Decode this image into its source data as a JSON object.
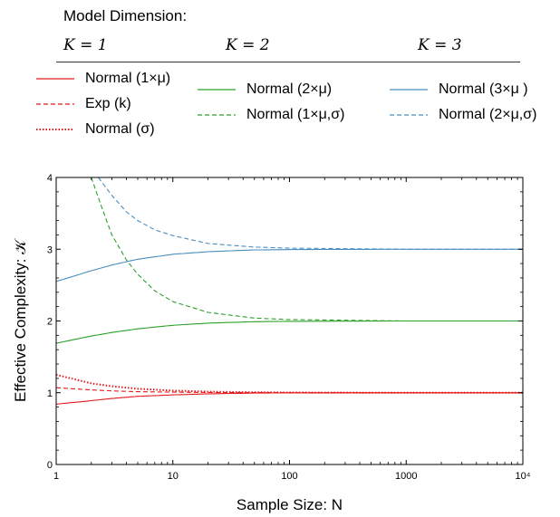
{
  "legend": {
    "title": "Model Dimension:",
    "headers": [
      "K = 1",
      "K = 2",
      "K = 3"
    ],
    "groups": [
      [
        {
          "label": "Normal (1×μ)",
          "color": "#e41a1c",
          "dash": "solid"
        },
        {
          "label": "Exp (k)",
          "color": "#e41a1c",
          "dash": "dashed"
        },
        {
          "label": "Normal (σ)",
          "color": "#e41a1c",
          "dash": "dotted"
        }
      ],
      [
        {
          "label": "Normal (2×μ)",
          "color": "#2ca02c",
          "dash": "solid"
        },
        {
          "label": "Normal (1×μ,σ)",
          "color": "#2ca02c",
          "dash": "dashed"
        }
      ],
      [
        {
          "label": "Normal (3×μ )",
          "color": "#4a8ec0",
          "dash": "solid"
        },
        {
          "label": "Normal (2×μ,σ)",
          "color": "#4a8ec0",
          "dash": "dashed"
        }
      ]
    ]
  },
  "chart_data": {
    "type": "line",
    "xscale": "log",
    "xlim": [
      1,
      10000
    ],
    "ylim": [
      0,
      4
    ],
    "xticks": [
      1,
      10,
      100,
      1000,
      10000
    ],
    "xtick_labels": [
      "1",
      "10",
      "100",
      "1000",
      "10⁴"
    ],
    "yticks": [
      0,
      1,
      2,
      3,
      4
    ],
    "ytick_labels": [
      "0",
      "1",
      "2",
      "3",
      "4"
    ],
    "xlabel": "Sample Size: N",
    "ylabel": "Effective Complexity: 𝒦",
    "grid": false,
    "series": [
      {
        "name": "Normal (1×μ)",
        "color": "#e41a1c",
        "dash": "solid",
        "x": [
          1,
          2,
          3,
          5,
          10,
          20,
          50,
          100,
          1000,
          10000
        ],
        "y": [
          0.84,
          0.89,
          0.92,
          0.95,
          0.97,
          0.985,
          0.995,
          0.998,
          1.0,
          1.0
        ]
      },
      {
        "name": "Exp (k)",
        "color": "#e41a1c",
        "dash": "dashed",
        "x": [
          1,
          2,
          3,
          5,
          10,
          20,
          50,
          100,
          1000,
          10000
        ],
        "y": [
          1.07,
          1.04,
          1.025,
          1.015,
          1.008,
          1.004,
          1.002,
          1.001,
          1.0,
          1.0
        ]
      },
      {
        "name": "Normal (σ)",
        "color": "#e41a1c",
        "dash": "dotted",
        "x": [
          1,
          2,
          3,
          5,
          10,
          20,
          50,
          100,
          1000,
          10000
        ],
        "y": [
          1.25,
          1.13,
          1.09,
          1.055,
          1.03,
          1.015,
          1.006,
          1.003,
          1.0,
          1.0
        ]
      },
      {
        "name": "Normal (2×μ)",
        "color": "#2ca02c",
        "dash": "solid",
        "x": [
          1,
          2,
          3,
          5,
          10,
          20,
          50,
          100,
          1000,
          10000
        ],
        "y": [
          1.69,
          1.79,
          1.84,
          1.89,
          1.94,
          1.97,
          1.99,
          1.995,
          2.0,
          2.0
        ]
      },
      {
        "name": "Normal (1×μ,σ)",
        "color": "#2ca02c",
        "dash": "dashed",
        "x": [
          2,
          2.5,
          3,
          4,
          5,
          7,
          10,
          20,
          50,
          100,
          1000,
          10000
        ],
        "y": [
          4.0,
          3.55,
          3.2,
          2.85,
          2.65,
          2.42,
          2.27,
          2.12,
          2.04,
          2.02,
          2.0,
          2.0
        ]
      },
      {
        "name": "Normal (3×μ )",
        "color": "#4a8ec0",
        "dash": "solid",
        "x": [
          1,
          2,
          3,
          5,
          10,
          20,
          50,
          100,
          1000,
          10000
        ],
        "y": [
          2.55,
          2.7,
          2.78,
          2.86,
          2.93,
          2.965,
          2.99,
          2.995,
          3.0,
          3.0
        ]
      },
      {
        "name": "Normal (2×μ,σ)",
        "color": "#4a8ec0",
        "dash": "dashed",
        "x": [
          2.3,
          3,
          4,
          5,
          7,
          10,
          20,
          50,
          100,
          1000,
          10000
        ],
        "y": [
          4.0,
          3.75,
          3.52,
          3.4,
          3.27,
          3.19,
          3.08,
          3.03,
          3.015,
          3.0,
          3.0
        ]
      }
    ]
  }
}
